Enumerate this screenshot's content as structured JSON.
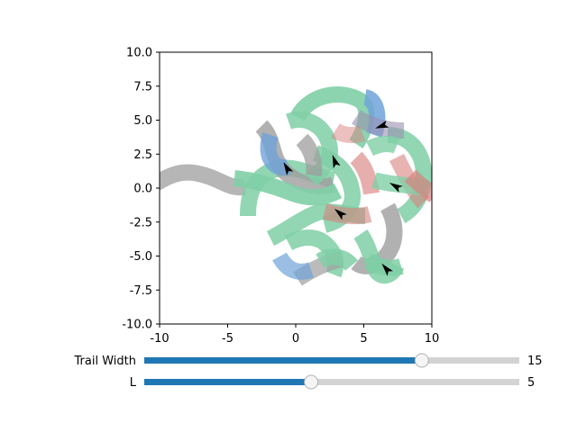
{
  "plot": {
    "xlim": [
      -10,
      10
    ],
    "ylim": [
      -10,
      10
    ],
    "x_ticks": [
      "-10",
      "-5",
      "0",
      "5",
      "10"
    ],
    "y_ticks": [
      "10.0",
      "7.5",
      "5.0",
      "2.5",
      "0.0",
      "-2.5",
      "-5.0",
      "-7.5",
      "-10.0"
    ],
    "x_tick_values": [
      -10,
      -5,
      0,
      5,
      10
    ],
    "y_tick_values": [
      10,
      7.5,
      5,
      2.5,
      0,
      -2.5,
      -5,
      -7.5,
      -10
    ],
    "trail_colors": [
      "#7fcfa6",
      "#9e9e9e",
      "#6fa3d9",
      "#d9827f",
      "#9a8fb0"
    ],
    "arrow_color": "#000000",
    "agents": [
      {
        "x": 6.4,
        "y": 4.6,
        "heading": 200
      },
      {
        "x": -0.6,
        "y": 1.4,
        "heading": 120
      },
      {
        "x": 2.9,
        "y": 1.9,
        "heading": 110
      },
      {
        "x": 7.4,
        "y": 0.1,
        "heading": 150
      },
      {
        "x": 3.3,
        "y": -1.9,
        "heading": 140
      },
      {
        "x": 6.7,
        "y": -6.0,
        "heading": 130
      }
    ]
  },
  "sliders": [
    {
      "label": "Trail Width",
      "value": "15",
      "fraction": 0.74,
      "fill_color": "#1f77b4",
      "track_color": "#d3d3d3"
    },
    {
      "label": "L",
      "value": "5",
      "fraction": 0.445,
      "fill_color": "#1f77b4",
      "track_color": "#d3d3d3"
    }
  ]
}
